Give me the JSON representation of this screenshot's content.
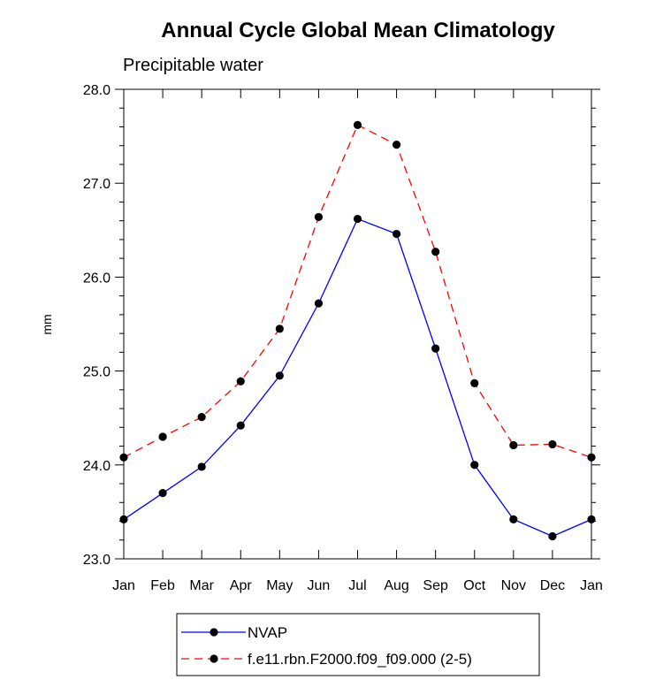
{
  "chart_data": {
    "type": "line",
    "title": "Annual Cycle Global Mean Climatology",
    "subtitle": "Precipitable water",
    "xlabel": "",
    "ylabel": "mm",
    "categories": [
      "Jan",
      "Feb",
      "Mar",
      "Apr",
      "May",
      "Jun",
      "Jul",
      "Aug",
      "Sep",
      "Oct",
      "Nov",
      "Dec",
      "Jan"
    ],
    "ylim": [
      23.0,
      28.0
    ],
    "yticks": [
      "23.0",
      "24.0",
      "25.0",
      "26.0",
      "27.0",
      "28.0"
    ],
    "grid": false,
    "legend_position": "bottom",
    "series": [
      {
        "name": "NVAP",
        "color": "#0000ff",
        "line_style": "solid",
        "values": [
          23.42,
          23.7,
          23.98,
          24.42,
          24.95,
          25.72,
          26.62,
          26.46,
          25.24,
          24.0,
          23.42,
          23.24,
          23.42
        ]
      },
      {
        "name": "f.e11.rbn.F2000.f09_f09.000 (2-5)",
        "color": "#ff0000",
        "line_style": "dashed",
        "values": [
          24.08,
          24.3,
          24.51,
          24.89,
          25.45,
          26.64,
          27.62,
          27.41,
          26.27,
          24.87,
          24.21,
          24.22,
          24.08
        ]
      }
    ]
  }
}
